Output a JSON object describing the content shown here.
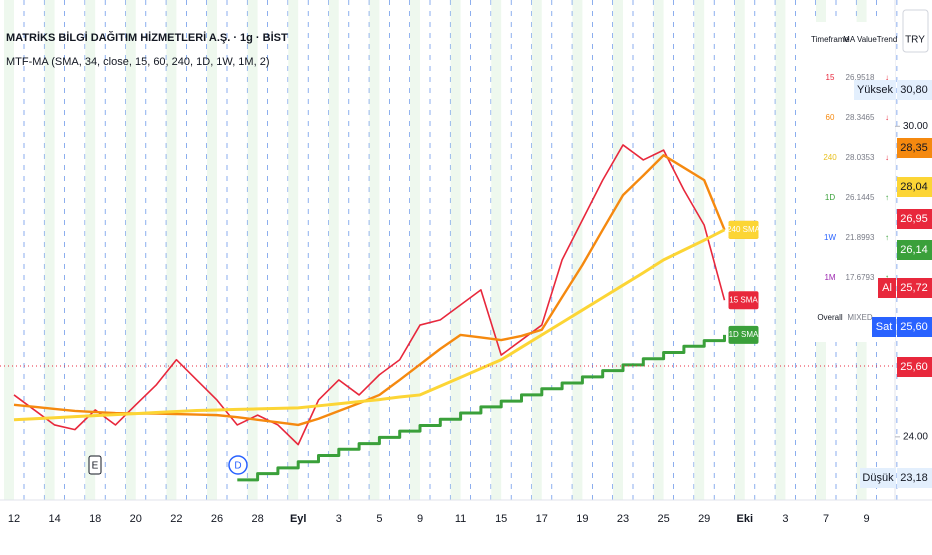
{
  "chart_data": {
    "type": "line",
    "title": "MATRİKS BİLGİ DAĞITIM HİZMETLERİ A.Ş. · 1g · BİST",
    "subtitle": "MTF-MA (SMA, 34, close, 15, 60, 240, 1D, 1W, 1M, 2)",
    "categories": [
      "12",
      null,
      "14",
      null,
      "18",
      null,
      "20",
      null,
      "22",
      null,
      "26",
      null,
      "28",
      null,
      "Eyl",
      null,
      "3",
      null,
      "5",
      null,
      "9",
      null,
      "11",
      null,
      "15",
      null,
      "17",
      null,
      "19",
      null,
      "23",
      null,
      "25",
      null,
      "29",
      null,
      "Eki",
      null,
      "3",
      null,
      "7",
      null,
      "9",
      null
    ],
    "series": [
      {
        "name": "15 SMA",
        "color": "#e8283c",
        "width": 1.6,
        "values": [
          24.81,
          24.52,
          24.23,
          24.14,
          24.52,
          24.23,
          24.62,
          25.0,
          25.49,
          25.1,
          24.71,
          24.23,
          24.42,
          24.23,
          23.85,
          24.71,
          25.1,
          24.81,
          25.2,
          25.49,
          26.16,
          26.26,
          26.55,
          26.84,
          25.58,
          25.87,
          26.16,
          27.42,
          28.19,
          28.96,
          29.64,
          29.35,
          29.54,
          28.77,
          28.09,
          26.64,
          null,
          null,
          null,
          null,
          null,
          null,
          null,
          null
        ]
      },
      {
        "name": "60 SMA",
        "color": "#f5890f",
        "width": 2.4,
        "values": [
          24.62,
          24.58,
          24.54,
          24.5,
          24.48,
          24.46,
          24.45,
          24.45,
          24.44,
          24.43,
          24.42,
          24.38,
          24.33,
          24.28,
          24.23,
          24.35,
          24.5,
          24.65,
          24.81,
          25.1,
          25.4,
          25.7,
          25.97,
          25.92,
          25.87,
          25.95,
          26.07,
          26.7,
          27.32,
          28.0,
          28.67,
          29.05,
          29.44,
          29.2,
          28.96,
          28.0,
          null,
          null,
          null,
          null,
          null,
          null,
          null,
          null
        ]
      },
      {
        "name": "240 SMA",
        "color": "#fcd535",
        "width": 3,
        "values": [
          24.33,
          24.35,
          24.37,
          24.39,
          24.41,
          24.43,
          24.45,
          24.47,
          24.49,
          24.51,
          24.52,
          24.53,
          24.54,
          24.55,
          24.56,
          24.6,
          24.64,
          24.68,
          24.72,
          24.77,
          24.81,
          24.98,
          25.15,
          25.32,
          25.49,
          25.73,
          25.97,
          26.21,
          26.45,
          26.69,
          26.93,
          27.17,
          27.42,
          27.61,
          27.8,
          28.0,
          null,
          null,
          null,
          null,
          null,
          null,
          null,
          null
        ]
      },
      {
        "name": "1D SMA",
        "color": "#3aa03a",
        "width": 3,
        "style": "step",
        "values": [
          null,
          null,
          null,
          null,
          null,
          null,
          null,
          null,
          null,
          null,
          null,
          23.17,
          23.29,
          23.4,
          23.52,
          23.64,
          23.76,
          23.87,
          23.99,
          24.11,
          24.22,
          24.34,
          24.46,
          24.58,
          24.69,
          24.81,
          24.93,
          25.04,
          25.16,
          25.28,
          25.39,
          25.51,
          25.63,
          25.75,
          25.86,
          25.97,
          null,
          null,
          null,
          null,
          null,
          null,
          null,
          null
        ]
      }
    ],
    "ylim": [
      23.07,
      32.44
    ],
    "yticks": [
      {
        "value": 24,
        "label": "24.00"
      },
      {
        "value": 30,
        "label": "30.00"
      }
    ]
  },
  "currency": "TRY",
  "ma_table": {
    "columns": [
      "Timeframe",
      "MA Value",
      "Trend"
    ],
    "rows": [
      [
        "15",
        "26.9518",
        "↓"
      ],
      [
        "60",
        "28.3465",
        "↓"
      ],
      [
        "240",
        "28.0353",
        "↓"
      ],
      [
        "1D",
        "26.1445",
        "↑"
      ],
      [
        "1W",
        "21.8993",
        "↑"
      ],
      [
        "1M",
        "17.6793",
        "↑"
      ],
      [
        "Overall",
        "MIXED",
        ""
      ]
    ]
  },
  "price_tags": [
    {
      "label": "Yüksek",
      "text": "30,80"
    },
    {
      "text": "28,35"
    },
    {
      "text": "28,04"
    },
    {
      "text": "26,95"
    },
    {
      "text": "26,14"
    },
    {
      "label": "Al",
      "text": "25,72"
    },
    {
      "label": "Sat",
      "text": "25,60"
    },
    {
      "text": "25,60"
    },
    {
      "label": "Düşük",
      "text": "23,18"
    }
  ],
  "event_markers": [
    "E",
    "D"
  ]
}
